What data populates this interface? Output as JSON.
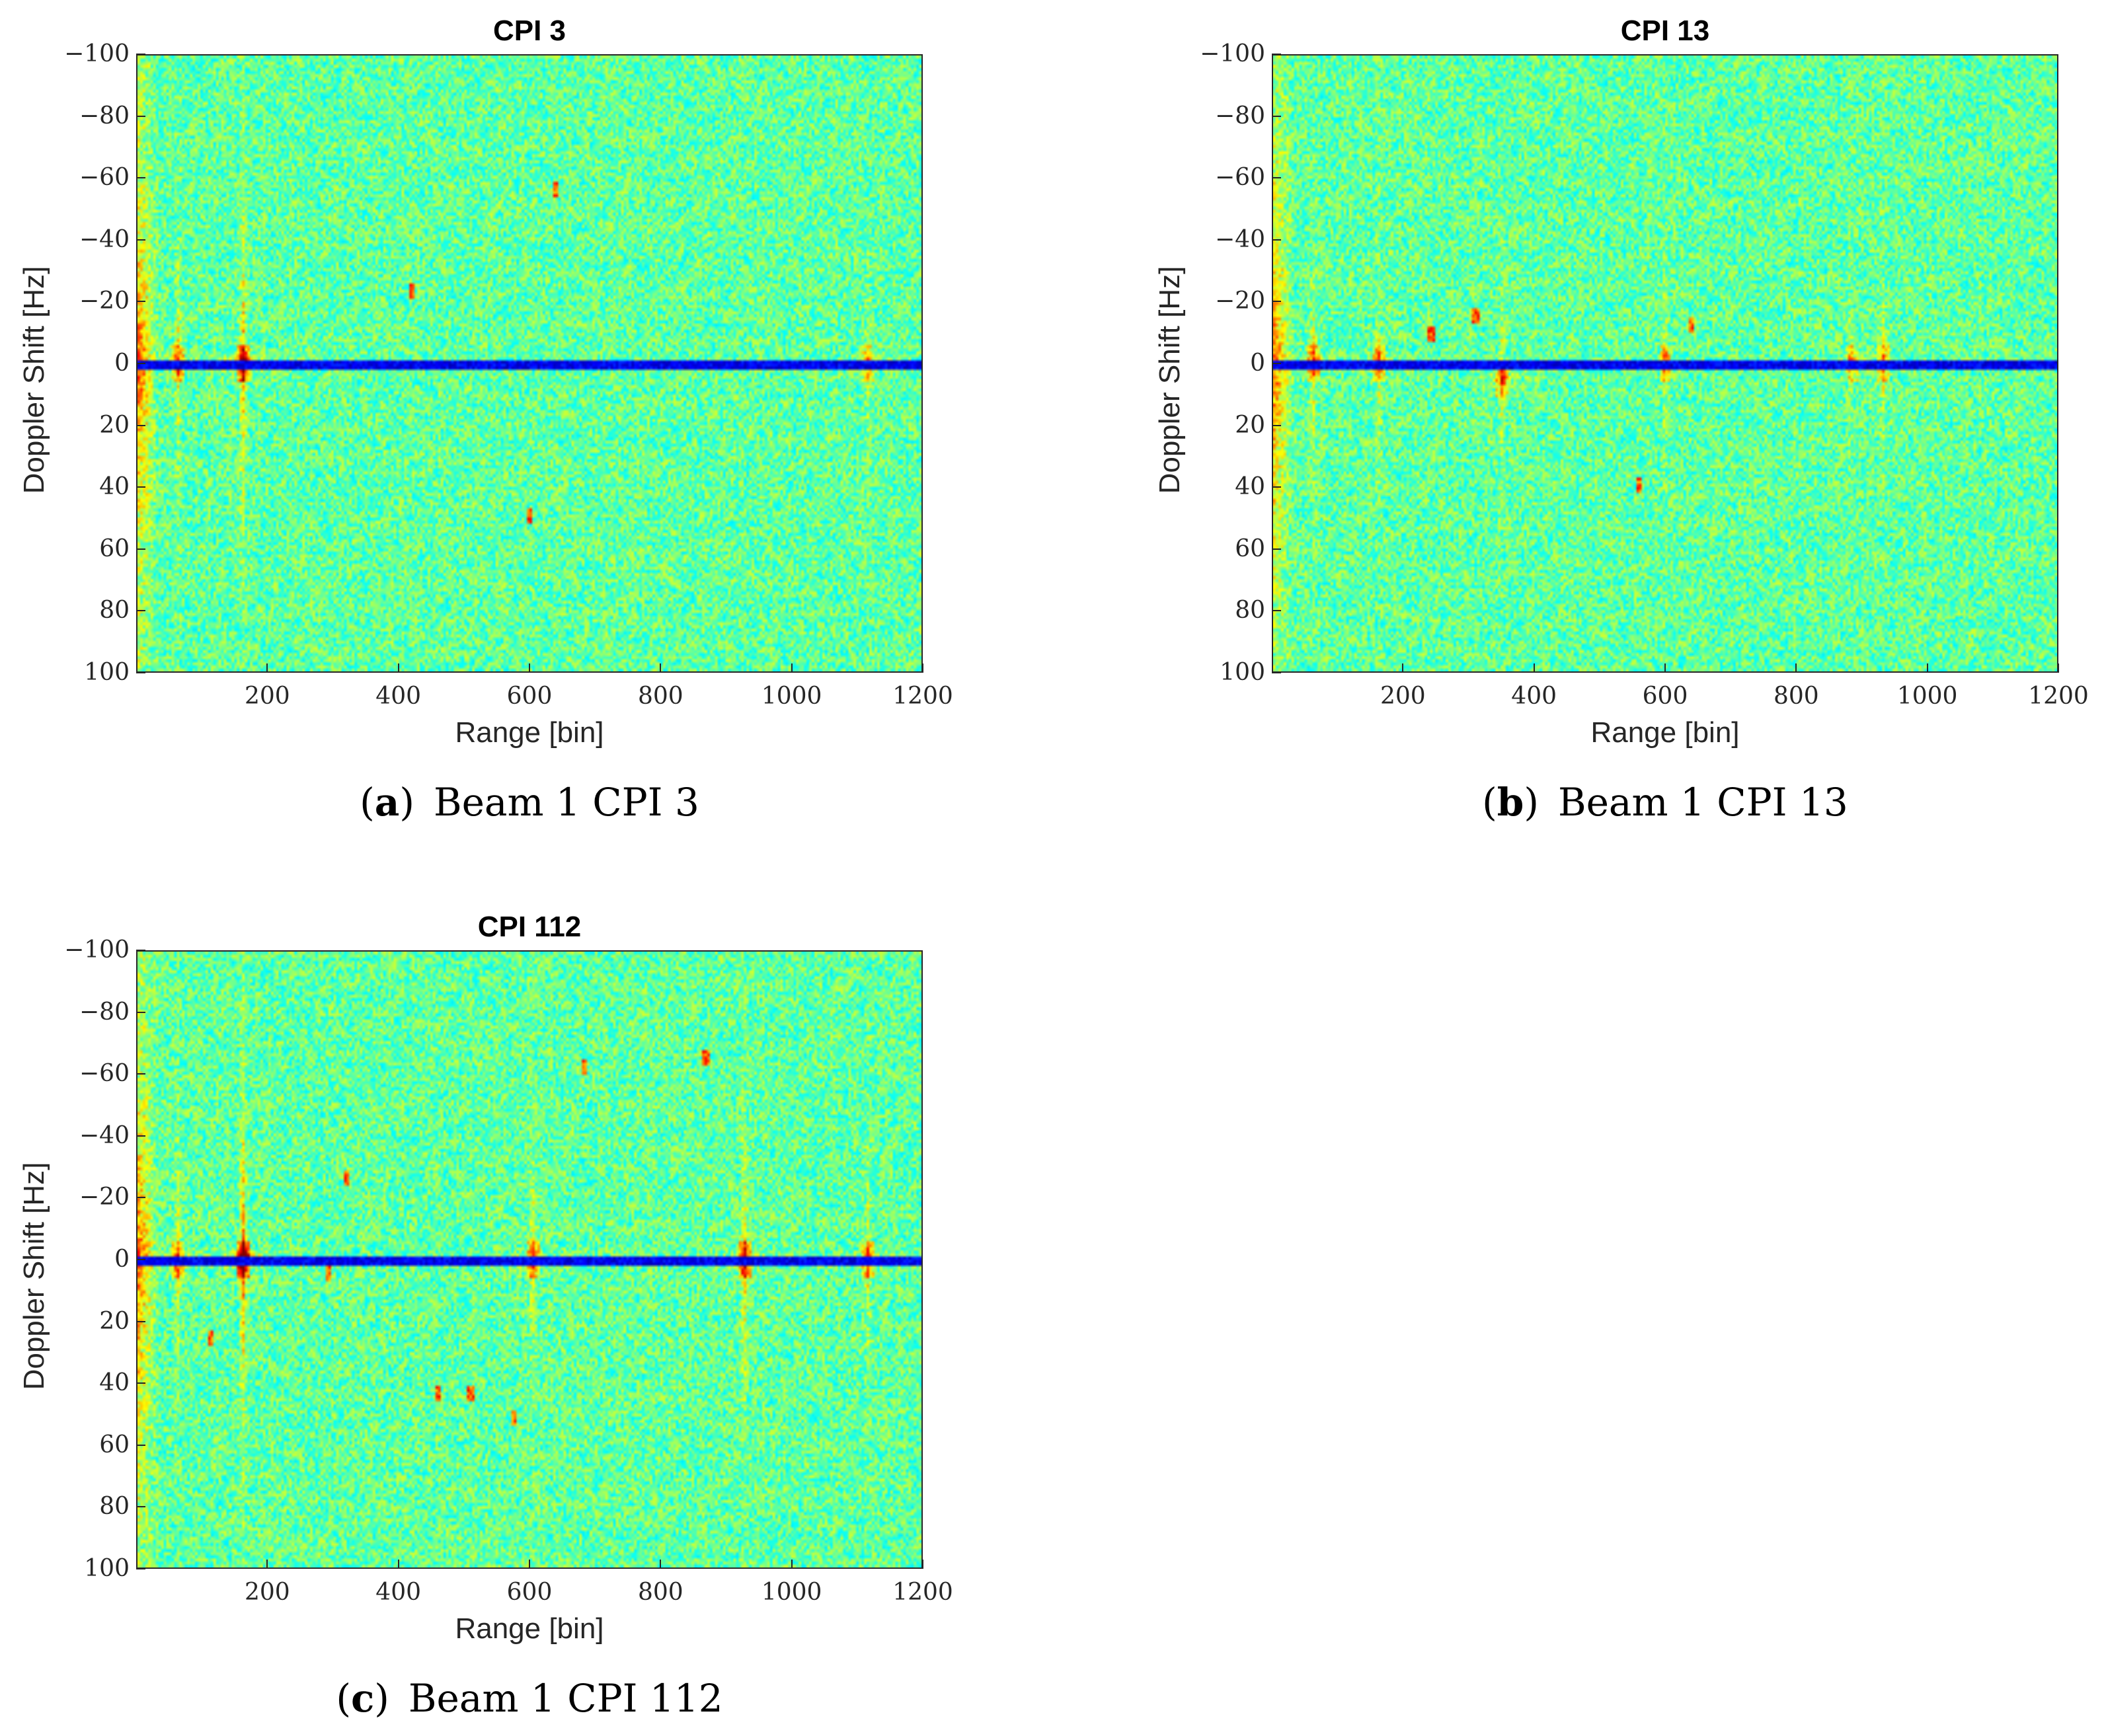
{
  "colors": {
    "background": "#7ecf6a",
    "clutter_ridge": "#0a1a8c",
    "hot": "#d81e1e"
  },
  "chart_data": [
    {
      "type": "heatmap",
      "title": "CPI 3",
      "xlabel": "Range [bin]",
      "ylabel": "Doppler Shift [Hz]",
      "xlim": [
        0,
        1200
      ],
      "ylim": [
        -100,
        100
      ],
      "x_ticks": [
        "200",
        "400",
        "600",
        "800",
        "1000",
        "1200"
      ],
      "y_ticks": [
        "−100",
        "−80",
        "−60",
        "−40",
        "−20",
        "0",
        "20",
        "40",
        "60",
        "80",
        "100"
      ],
      "caption_letter": "a",
      "caption_text": "Beam 1 CPI 3",
      "clutter_doppler": 0,
      "strong_targets": [
        {
          "range": 160,
          "doppler": 0,
          "strength": 0.85
        },
        {
          "range": 60,
          "doppler": 0,
          "strength": 0.55
        },
        {
          "range": 1120,
          "doppler": 0,
          "strength": 0.4
        }
      ],
      "near_range_clutter_bins": 30,
      "point_targets": [
        {
          "range": 420,
          "doppler": -24
        },
        {
          "range": 600,
          "doppler": 50
        },
        {
          "range": 640,
          "doppler": -57
        }
      ]
    },
    {
      "type": "heatmap",
      "title": "CPI 13",
      "xlabel": "Range [bin]",
      "ylabel": "Doppler Shift [Hz]",
      "xlim": [
        0,
        1200
      ],
      "ylim": [
        -100,
        100
      ],
      "x_ticks": [
        "200",
        "400",
        "600",
        "800",
        "1000",
        "1200"
      ],
      "y_ticks": [
        "−100",
        "−80",
        "−60",
        "−40",
        "−20",
        "0",
        "20",
        "40",
        "60",
        "80",
        "100"
      ],
      "caption_letter": "b",
      "caption_text": "Beam 1 CPI 13",
      "clutter_doppler": 0,
      "strong_targets": [
        {
          "range": 160,
          "doppler": 0,
          "strength": 0.5
        },
        {
          "range": 60,
          "doppler": 0,
          "strength": 0.55
        },
        {
          "range": 350,
          "doppler": 5,
          "strength": 0.5
        },
        {
          "range": 600,
          "doppler": 0,
          "strength": 0.5
        },
        {
          "range": 885,
          "doppler": 0,
          "strength": 0.4
        },
        {
          "range": 935,
          "doppler": 0,
          "strength": 0.45
        }
      ],
      "near_range_clutter_bins": 30,
      "point_targets": [
        {
          "range": 240,
          "doppler": -10
        },
        {
          "range": 310,
          "doppler": -16
        },
        {
          "range": 560,
          "doppler": 40
        },
        {
          "range": 640,
          "doppler": -13
        }
      ]
    },
    {
      "type": "heatmap",
      "title": "CPI 112",
      "xlabel": "Range [bin]",
      "ylabel": "Doppler Shift [Hz]",
      "xlim": [
        0,
        1200
      ],
      "ylim": [
        -100,
        100
      ],
      "x_ticks": [
        "200",
        "400",
        "600",
        "800",
        "1000",
        "1200"
      ],
      "y_ticks": [
        "−100",
        "−80",
        "−60",
        "−40",
        "−20",
        "0",
        "20",
        "40",
        "60",
        "80",
        "100"
      ],
      "caption_letter": "c",
      "caption_text": "Beam 1 CPI 112",
      "clutter_doppler": 0,
      "strong_targets": [
        {
          "range": 160,
          "doppler": 0,
          "strength": 1.0
        },
        {
          "range": 60,
          "doppler": 0,
          "strength": 0.55
        },
        {
          "range": 605,
          "doppler": 0,
          "strength": 0.6
        },
        {
          "range": 930,
          "doppler": 0,
          "strength": 0.75
        },
        {
          "range": 1120,
          "doppler": 0,
          "strength": 0.55
        }
      ],
      "near_range_clutter_bins": 30,
      "point_targets": [
        {
          "range": 685,
          "doppler": -63
        },
        {
          "range": 510,
          "doppler": 44
        },
        {
          "range": 460,
          "doppler": 44
        },
        {
          "range": 320,
          "doppler": -27
        },
        {
          "range": 290,
          "doppler": 5
        },
        {
          "range": 110,
          "doppler": 26
        },
        {
          "range": 870,
          "doppler": -66
        },
        {
          "range": 575,
          "doppler": 52
        }
      ]
    }
  ]
}
